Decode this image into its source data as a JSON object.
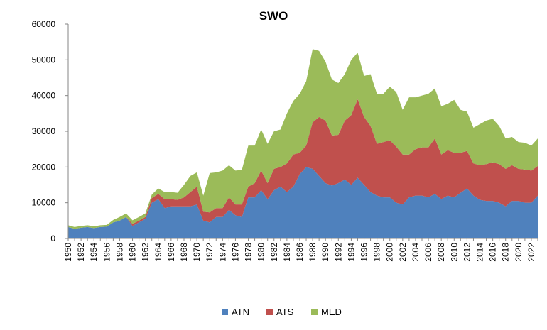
{
  "chart_data": {
    "type": "area",
    "stacked": true,
    "title": "SWO",
    "xlabel": "",
    "ylabel": "",
    "ylim": [
      0,
      60000
    ],
    "yticks": [
      "0",
      "10000",
      "20000",
      "30000",
      "40000",
      "50000",
      "60000"
    ],
    "grid": false,
    "legend_position": "bottom",
    "x": [
      1950,
      1951,
      1952,
      1953,
      1954,
      1955,
      1956,
      1957,
      1958,
      1959,
      1960,
      1961,
      1962,
      1963,
      1964,
      1965,
      1966,
      1967,
      1968,
      1969,
      1970,
      1971,
      1972,
      1973,
      1974,
      1975,
      1976,
      1977,
      1978,
      1979,
      1980,
      1981,
      1982,
      1983,
      1984,
      1985,
      1986,
      1987,
      1988,
      1989,
      1990,
      1991,
      1992,
      1993,
      1994,
      1995,
      1996,
      1997,
      1998,
      1999,
      2000,
      2001,
      2002,
      2003,
      2004,
      2005,
      2006,
      2007,
      2008,
      2009,
      2010,
      2011,
      2012,
      2013,
      2014,
      2015,
      2016,
      2017,
      2018,
      2019,
      2020,
      2021,
      2022,
      2023
    ],
    "xtick_labels": [
      "1950",
      "1952",
      "1954",
      "1956",
      "1958",
      "1960",
      "1962",
      "1964",
      "1966",
      "1968",
      "1970",
      "1972",
      "1974",
      "1976",
      "1978",
      "1980",
      "1982",
      "1984",
      "1986",
      "1988",
      "1990",
      "1992",
      "1994",
      "1996",
      "1998",
      "2000",
      "2002",
      "2004",
      "2006",
      "2008",
      "2010",
      "2012",
      "2014",
      "2016",
      "2018",
      "2020",
      "2022"
    ],
    "series": [
      {
        "name": "ATN",
        "color": "#4f81bd",
        "values": [
          3200,
          2700,
          3000,
          3200,
          2900,
          3200,
          3300,
          4500,
          5000,
          6000,
          3500,
          4500,
          5500,
          10000,
          11000,
          8500,
          9000,
          9000,
          9000,
          9000,
          9500,
          5000,
          4500,
          6000,
          6000,
          8000,
          6500,
          6000,
          11500,
          11500,
          13500,
          11000,
          13500,
          14500,
          13000,
          14500,
          18000,
          20000,
          19500,
          17500,
          15500,
          14800,
          15500,
          16500,
          15000,
          17000,
          15000,
          13000,
          12000,
          11500,
          11500,
          10000,
          9500,
          11500,
          12000,
          12000,
          11500,
          12500,
          11000,
          12000,
          11500,
          12800,
          14000,
          12000,
          10800,
          10500,
          10500,
          10000,
          9000,
          10500,
          10500,
          10000,
          10000,
          12000
        ]
      },
      {
        "name": "ATS",
        "color": "#c0504d",
        "values": [
          0,
          0,
          0,
          0,
          0,
          0,
          0,
          0,
          0,
          0,
          600,
          500,
          500,
          1300,
          1500,
          2500,
          2000,
          1800,
          2500,
          4000,
          5000,
          2500,
          2800,
          2500,
          2500,
          3500,
          3000,
          3500,
          3000,
          4000,
          5500,
          4500,
          6000,
          5500,
          8000,
          9000,
          6000,
          6000,
          13000,
          16500,
          17500,
          14000,
          13500,
          16500,
          19500,
          22000,
          19000,
          18500,
          14500,
          15500,
          16000,
          15700,
          14000,
          12000,
          13000,
          13500,
          14000,
          15500,
          12500,
          12700,
          12500,
          11200,
          10500,
          9000,
          9700,
          10300,
          10800,
          10800,
          10500,
          10000,
          9000,
          9300,
          9000,
          8300
        ]
      },
      {
        "name": "MED",
        "color": "#9bbb59",
        "values": [
          500,
          500,
          500,
          500,
          500,
          500,
          500,
          700,
          1000,
          1000,
          1000,
          1000,
          1000,
          1000,
          1500,
          2000,
          2000,
          2000,
          3500,
          4500,
          4000,
          4500,
          11000,
          10000,
          10500,
          9000,
          9500,
          9700,
          11500,
          10500,
          11500,
          11000,
          10500,
          10500,
          14000,
          15000,
          16500,
          18000,
          20500,
          18500,
          16500,
          15700,
          14500,
          13000,
          15500,
          13000,
          11500,
          14500,
          14000,
          13500,
          15000,
          15300,
          12500,
          16000,
          14500,
          14500,
          15000,
          14000,
          13500,
          13000,
          14800,
          12000,
          11000,
          10000,
          11500,
          12200,
          12200,
          10700,
          8500,
          7900,
          7500,
          7500,
          7000,
          7700
        ]
      }
    ]
  }
}
